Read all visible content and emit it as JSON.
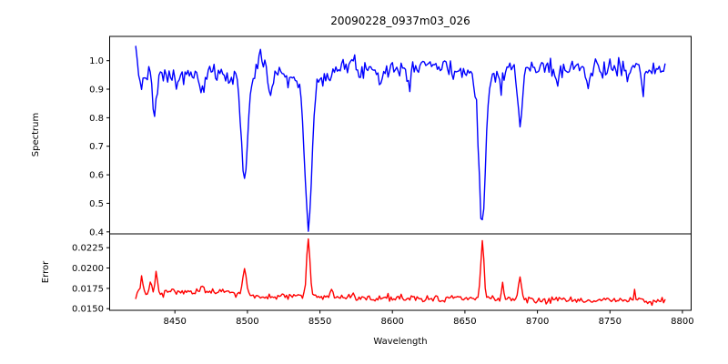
{
  "title": "20090228_0937m03_026",
  "chart_data": {
    "type": "line",
    "title": "20090228_0937m03_026",
    "xlabel": "Wavelength",
    "xlim": [
      8405,
      8806
    ],
    "xticks": [
      8450,
      8500,
      8550,
      8600,
      8650,
      8700,
      8750,
      8800
    ],
    "xtick_labels": [
      "8450",
      "8500",
      "8550",
      "8600",
      "8650",
      "8700",
      "8750",
      "8800"
    ],
    "x_data_range": [
      8423,
      8788
    ],
    "x_step": 1.0,
    "grid": false,
    "legend": "none",
    "panels": [
      {
        "name": "spectrum",
        "ylabel": "Spectrum",
        "color": "#0000ff",
        "ylim": [
          0.393,
          1.085
        ],
        "yticks": [
          0.4,
          0.5,
          0.6,
          0.7,
          0.8,
          0.9,
          1.0
        ],
        "ytick_labels": [
          "0.4",
          "0.5",
          "0.6",
          "0.7",
          "0.8",
          "0.9",
          "1.0"
        ]
      },
      {
        "name": "error",
        "ylabel": "Error",
        "color": "#ff0000",
        "ylim": [
          0.0148,
          0.0242
        ],
        "yticks": [
          0.015,
          0.0175,
          0.02,
          0.0225
        ],
        "ytick_labels": [
          "0.0150",
          "0.0175",
          "0.0200",
          "0.0225"
        ]
      }
    ],
    "spectrum": {
      "noise_seed": 7,
      "noise_std": 0.016,
      "continuum_points": [
        [
          8423,
          0.965
        ],
        [
          8445,
          0.945
        ],
        [
          8475,
          0.955
        ],
        [
          8520,
          0.965
        ],
        [
          8560,
          0.97
        ],
        [
          8620,
          0.975
        ],
        [
          8700,
          0.975
        ],
        [
          8788,
          0.972
        ]
      ],
      "absorption_lines": [
        {
          "center": 8427,
          "depth": 0.06,
          "sigma": 1.0
        },
        {
          "center": 8436,
          "depth": 0.15,
          "sigma": 1.4
        },
        {
          "center": 8452,
          "depth": 0.045,
          "sigma": 1.0
        },
        {
          "center": 8469,
          "depth": 0.09,
          "sigma": 1.3
        },
        {
          "center": 8498,
          "depth": 0.32,
          "sigma": 2.0
        },
        {
          "center": 8498,
          "depth": 0.05,
          "sigma": 6.0
        },
        {
          "center": 8516,
          "depth": 0.08,
          "sigma": 1.5
        },
        {
          "center": 8527,
          "depth": 0.04,
          "sigma": 1.2
        },
        {
          "center": 8542,
          "depth": 0.48,
          "sigma": 2.4
        },
        {
          "center": 8542,
          "depth": 0.06,
          "sigma": 7.0
        },
        {
          "center": 8592,
          "depth": 0.045,
          "sigma": 1.1
        },
        {
          "center": 8611,
          "depth": 0.05,
          "sigma": 1.3
        },
        {
          "center": 8641,
          "depth": 0.04,
          "sigma": 1.2
        },
        {
          "center": 8662,
          "depth": 0.49,
          "sigma": 2.2
        },
        {
          "center": 8662,
          "depth": 0.05,
          "sigma": 6.0
        },
        {
          "center": 8675,
          "depth": 0.05,
          "sigma": 1.1
        },
        {
          "center": 8688,
          "depth": 0.2,
          "sigma": 1.6
        },
        {
          "center": 8713,
          "depth": 0.055,
          "sigma": 1.2
        },
        {
          "center": 8735,
          "depth": 0.065,
          "sigma": 1.3
        },
        {
          "center": 8763,
          "depth": 0.04,
          "sigma": 1.0
        },
        {
          "center": 8773,
          "depth": 0.095,
          "sigma": 1.3
        }
      ],
      "emission_bumps": [
        {
          "center": 8423.5,
          "amp": 0.05,
          "sigma": 0.8
        },
        {
          "center": 8509,
          "amp": 0.065,
          "sigma": 2.2
        },
        {
          "center": 8572,
          "amp": 0.025,
          "sigma": 1.5
        },
        {
          "center": 8622,
          "amp": 0.02,
          "sigma": 6.0
        }
      ]
    },
    "error": {
      "noise_seed": 13,
      "noise_std": 0.00022,
      "baseline_points": [
        [
          8423,
          0.0164
        ],
        [
          8430,
          0.0169
        ],
        [
          8450,
          0.0171
        ],
        [
          8490,
          0.0169
        ],
        [
          8512,
          0.0163
        ],
        [
          8528,
          0.0167
        ],
        [
          8555,
          0.0164
        ],
        [
          8600,
          0.0163
        ],
        [
          8660,
          0.0162
        ],
        [
          8700,
          0.0161
        ],
        [
          8788,
          0.016
        ]
      ],
      "peaks": [
        {
          "center": 8427,
          "amp": 0.0022,
          "sigma": 0.9
        },
        {
          "center": 8433,
          "amp": 0.0015,
          "sigma": 0.8
        },
        {
          "center": 8437,
          "amp": 0.0021,
          "sigma": 0.9
        },
        {
          "center": 8469,
          "amp": 0.0007,
          "sigma": 1.0
        },
        {
          "center": 8498,
          "amp": 0.0033,
          "sigma": 1.3
        },
        {
          "center": 8542,
          "amp": 0.007,
          "sigma": 1.1
        },
        {
          "center": 8558,
          "amp": 0.0007,
          "sigma": 0.8
        },
        {
          "center": 8662,
          "amp": 0.0074,
          "sigma": 1.1
        },
        {
          "center": 8676,
          "amp": 0.0015,
          "sigma": 0.9
        },
        {
          "center": 8688,
          "amp": 0.0026,
          "sigma": 1.0
        },
        {
          "center": 8767,
          "amp": 0.0015,
          "sigma": 0.5
        }
      ]
    }
  }
}
